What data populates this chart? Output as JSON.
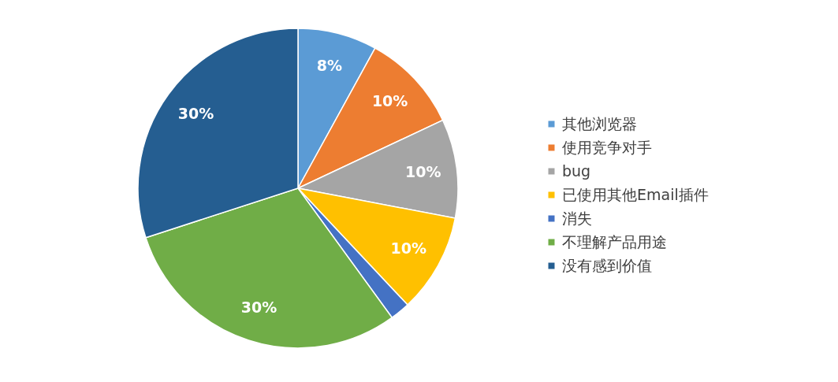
{
  "chart_data": {
    "type": "pie",
    "categories": [
      "其他浏览器",
      "使用竞争对手",
      "bug",
      "已使用其他Email插件",
      "消失",
      "不理解产品用途",
      "没有感到价值"
    ],
    "values": [
      8,
      10,
      10,
      10,
      2,
      30,
      30
    ],
    "value_labels": [
      "8%",
      "10%",
      "10%",
      "10%",
      null,
      "30%",
      "30%"
    ],
    "colors": [
      "#5b9bd5",
      "#ed7d31",
      "#a5a5a5",
      "#ffc000",
      "#4472c4",
      "#70ad47",
      "#255e91"
    ],
    "legend": "right"
  }
}
